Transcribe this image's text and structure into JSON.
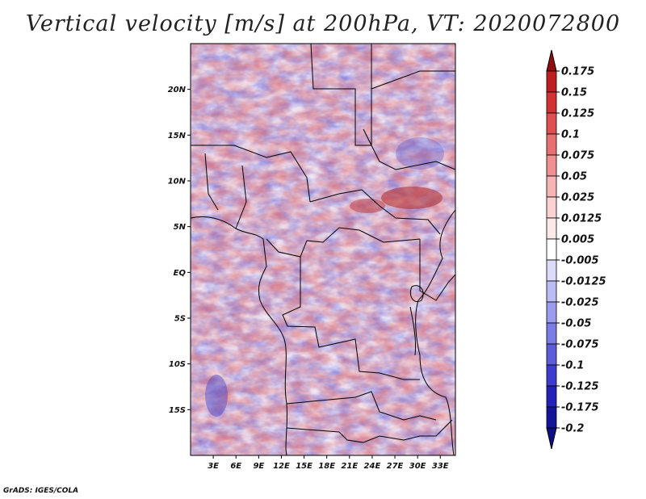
{
  "title": "Vertical velocity [m/s] at 200hPa, VT: 2020072800",
  "credit": "GrADS: IGES/COLA",
  "map": {
    "lon_range": [
      0,
      35
    ],
    "lat_range": [
      -20,
      25
    ],
    "lat_ticks": [
      {
        "value": 20,
        "label": "20N"
      },
      {
        "value": 15,
        "label": "15N"
      },
      {
        "value": 10,
        "label": "10N"
      },
      {
        "value": 5,
        "label": "5N"
      },
      {
        "value": 0,
        "label": "EQ"
      },
      {
        "value": -5,
        "label": "5S"
      },
      {
        "value": -10,
        "label": "10S"
      },
      {
        "value": -15,
        "label": "15S"
      }
    ],
    "lon_ticks": [
      {
        "value": 3,
        "label": "3E"
      },
      {
        "value": 6,
        "label": "6E"
      },
      {
        "value": 9,
        "label": "9E"
      },
      {
        "value": 12,
        "label": "12E"
      },
      {
        "value": 15,
        "label": "15E"
      },
      {
        "value": 18,
        "label": "18E"
      },
      {
        "value": 21,
        "label": "21E"
      },
      {
        "value": 24,
        "label": "24E"
      },
      {
        "value": 27,
        "label": "27E"
      },
      {
        "value": 30,
        "label": "30E"
      },
      {
        "value": 33,
        "label": "33E"
      }
    ]
  },
  "colorbar": {
    "levels": [
      {
        "label": "0.175",
        "color": "#a01616"
      },
      {
        "label": "0.15",
        "color": "#be1e1e"
      },
      {
        "label": "0.125",
        "color": "#d23232"
      },
      {
        "label": "0.1",
        "color": "#e05050"
      },
      {
        "label": "0.075",
        "color": "#e87070"
      },
      {
        "label": "0.05",
        "color": "#f09090"
      },
      {
        "label": "0.025",
        "color": "#f6b4b4"
      },
      {
        "label": "0.0125",
        "color": "#fad2d2"
      },
      {
        "label": "0.005",
        "color": "#fde8e8"
      },
      {
        "label": "-0.005",
        "color": "#ffffff"
      },
      {
        "label": "-0.0125",
        "color": "#dcdcfa"
      },
      {
        "label": "-0.025",
        "color": "#bcbcf4"
      },
      {
        "label": "-0.05",
        "color": "#9c9cee"
      },
      {
        "label": "-0.075",
        "color": "#7c7ce6"
      },
      {
        "label": "-0.1",
        "color": "#5c5cdc"
      },
      {
        "label": "-0.125",
        "color": "#3c3cd0"
      },
      {
        "label": "-0.175",
        "color": "#2222b8"
      },
      {
        "label": "-0.2",
        "color": "#14149a"
      }
    ],
    "top_cap_color": "#8e0e0e",
    "bottom_cap_color": "#0e0e86"
  }
}
